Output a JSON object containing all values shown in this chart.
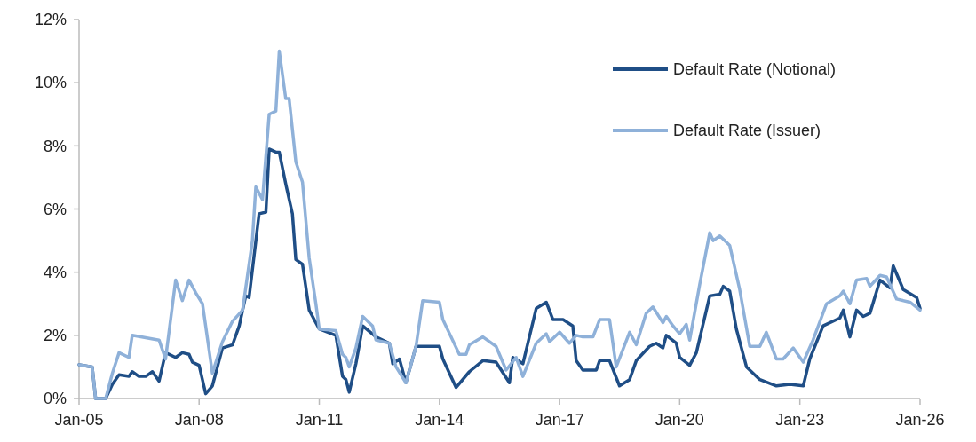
{
  "chart_data": {
    "type": "line",
    "legend": "top right",
    "grid": false,
    "line_style": "solid",
    "xlim": [
      "2005-01",
      "2026-01"
    ],
    "xticks": [
      {
        "value": "2005-01",
        "label": "Jan-05"
      },
      {
        "value": "2008-01",
        "label": "Jan-08"
      },
      {
        "value": "2011-01",
        "label": "Jan-11"
      },
      {
        "value": "2014-01",
        "label": "Jan-14"
      },
      {
        "value": "2017-01",
        "label": "Jan-17"
      },
      {
        "value": "2020-01",
        "label": "Jan-20"
      },
      {
        "value": "2023-01",
        "label": "Jan-23"
      },
      {
        "value": "2026-01",
        "label": "Jan-26"
      }
    ],
    "ylim": [
      0,
      12
    ],
    "yticks": [
      {
        "value": 0,
        "label": "0%"
      },
      {
        "value": 2,
        "label": "2%"
      },
      {
        "value": 4,
        "label": "4%"
      },
      {
        "value": 6,
        "label": "6%"
      },
      {
        "value": 8,
        "label": "8%"
      },
      {
        "value": 10,
        "label": "10%"
      },
      {
        "value": 12,
        "label": "12%"
      }
    ],
    "series": [
      {
        "name": "Default Rate (Notional)",
        "color": "#1f4e86",
        "x": [
          "2005-01",
          "2005-05",
          "2005-06",
          "2005-09",
          "2005-11",
          "2006-01",
          "2006-04",
          "2006-05",
          "2006-07",
          "2006-09",
          "2006-11",
          "2007-01",
          "2007-03",
          "2007-06",
          "2007-08",
          "2007-10",
          "2007-11",
          "2008-01",
          "2008-03",
          "2008-05",
          "2008-08",
          "2008-11",
          "2009-01",
          "2009-03",
          "2009-04",
          "2009-07",
          "2009-09",
          "2009-10",
          "2009-12",
          "2010-01",
          "2010-03",
          "2010-05",
          "2010-06",
          "2010-08",
          "2010-10",
          "2011-01",
          "2011-06",
          "2011-08",
          "2011-09",
          "2011-10",
          "2011-12",
          "2012-02",
          "2012-06",
          "2012-10",
          "2012-11",
          "2013-01",
          "2013-03",
          "2013-06",
          "2014-01",
          "2014-02",
          "2014-06",
          "2014-10",
          "2015-02",
          "2015-06",
          "2015-10",
          "2015-11",
          "2016-02",
          "2016-06",
          "2016-09",
          "2016-11",
          "2017-02",
          "2017-05",
          "2017-06",
          "2017-08",
          "2017-12",
          "2018-01",
          "2018-04",
          "2018-07",
          "2018-10",
          "2018-12",
          "2019-04",
          "2019-06",
          "2019-08",
          "2019-09",
          "2019-12",
          "2020-01",
          "2020-04",
          "2020-06",
          "2020-10",
          "2021-01",
          "2021-02",
          "2021-04",
          "2021-06",
          "2021-09",
          "2022-01",
          "2022-06",
          "2022-10",
          "2023-02",
          "2023-04",
          "2023-08",
          "2024-01",
          "2024-02",
          "2024-04",
          "2024-06",
          "2024-08",
          "2024-10",
          "2025-01",
          "2025-04",
          "2025-05",
          "2025-08",
          "2025-12",
          "2026-01"
        ],
        "values": [
          1.07,
          1.0,
          0,
          0,
          0.45,
          0.75,
          0.7,
          0.85,
          0.7,
          0.7,
          0.85,
          0.55,
          1.45,
          1.3,
          1.45,
          1.4,
          1.15,
          1.05,
          0.15,
          0.4,
          1.6,
          1.7,
          2.3,
          3.25,
          3.2,
          5.85,
          5.9,
          7.9,
          7.8,
          7.8,
          6.8,
          5.85,
          4.4,
          4.25,
          2.8,
          2.2,
          2.0,
          0.7,
          0.6,
          0.2,
          1.1,
          2.3,
          1.95,
          1.75,
          1.1,
          1.25,
          0.5,
          1.65,
          1.65,
          1.25,
          0.35,
          0.85,
          1.2,
          1.15,
          0.5,
          1.3,
          1.1,
          2.85,
          3.05,
          2.5,
          2.5,
          2.3,
          1.2,
          0.9,
          0.9,
          1.2,
          1.2,
          0.4,
          0.6,
          1.2,
          1.65,
          1.75,
          1.6,
          2.0,
          1.75,
          1.3,
          1.05,
          1.45,
          3.25,
          3.3,
          3.55,
          3.4,
          2.2,
          1.0,
          0.6,
          0.4,
          0.45,
          0.4,
          1.25,
          2.3,
          2.55,
          2.8,
          1.95,
          2.8,
          2.6,
          2.7,
          3.75,
          3.5,
          4.2,
          3.45,
          3.2,
          2.85
        ]
      },
      {
        "name": "Default Rate (Issuer)",
        "color": "#8fb1d9",
        "x": [
          "2005-01",
          "2005-05",
          "2005-06",
          "2005-09",
          "2005-11",
          "2006-01",
          "2006-04",
          "2006-05",
          "2007-01",
          "2007-03",
          "2007-06",
          "2007-08",
          "2007-10",
          "2007-12",
          "2008-02",
          "2008-05",
          "2008-08",
          "2008-11",
          "2009-02",
          "2009-05",
          "2009-06",
          "2009-08",
          "2009-10",
          "2009-12",
          "2010-01",
          "2010-03",
          "2010-04",
          "2010-06",
          "2010-08",
          "2010-10",
          "2010-12",
          "2011-01",
          "2011-06",
          "2011-08",
          "2011-09",
          "2011-10",
          "2011-12",
          "2012-02",
          "2012-05",
          "2012-06",
          "2012-10",
          "2012-12",
          "2013-03",
          "2013-06",
          "2013-08",
          "2014-01",
          "2014-02",
          "2014-07",
          "2014-09",
          "2014-10",
          "2015-02",
          "2015-06",
          "2015-09",
          "2015-12",
          "2016-02",
          "2016-06",
          "2016-09",
          "2016-10",
          "2017-01",
          "2017-04",
          "2017-06",
          "2017-08",
          "2017-11",
          "2018-01",
          "2018-04",
          "2018-06",
          "2018-08",
          "2018-10",
          "2018-12",
          "2019-03",
          "2019-05",
          "2019-08",
          "2019-09",
          "2019-11",
          "2020-01",
          "2020-03",
          "2020-04",
          "2020-07",
          "2020-10",
          "2020-11",
          "2021-01",
          "2021-04",
          "2021-07",
          "2021-10",
          "2022-01",
          "2022-03",
          "2022-06",
          "2022-08",
          "2022-11",
          "2023-02",
          "2023-05",
          "2023-09",
          "2024-01",
          "2024-02",
          "2024-04",
          "2024-06",
          "2024-09",
          "2024-10",
          "2025-01",
          "2025-03",
          "2025-06",
          "2025-10",
          "2026-01"
        ],
        "values": [
          1.07,
          1.0,
          0,
          0,
          0.8,
          1.45,
          1.3,
          2.0,
          1.85,
          1.25,
          3.75,
          3.1,
          3.75,
          3.35,
          3.0,
          0.8,
          1.8,
          2.45,
          2.8,
          5.0,
          6.7,
          6.3,
          9.0,
          9.1,
          11.0,
          9.5,
          9.5,
          7.5,
          6.85,
          4.45,
          3.0,
          2.2,
          2.15,
          1.4,
          1.3,
          1.0,
          1.6,
          2.6,
          2.3,
          1.85,
          1.75,
          1.0,
          0.5,
          1.65,
          3.1,
          3.05,
          2.5,
          1.4,
          1.4,
          1.7,
          1.95,
          1.65,
          0.9,
          1.3,
          0.7,
          1.75,
          2.05,
          1.8,
          2.1,
          1.75,
          2.0,
          1.95,
          1.95,
          2.5,
          2.5,
          1.0,
          1.55,
          2.1,
          1.7,
          2.7,
          2.9,
          2.4,
          2.6,
          2.3,
          2.05,
          2.35,
          1.85,
          3.6,
          5.25,
          5.0,
          5.15,
          4.85,
          3.45,
          1.65,
          1.65,
          2.1,
          1.25,
          1.25,
          1.6,
          1.15,
          1.85,
          3.0,
          3.25,
          3.4,
          3.0,
          3.75,
          3.8,
          3.55,
          3.9,
          3.85,
          3.15,
          3.05,
          2.8
        ]
      }
    ]
  }
}
